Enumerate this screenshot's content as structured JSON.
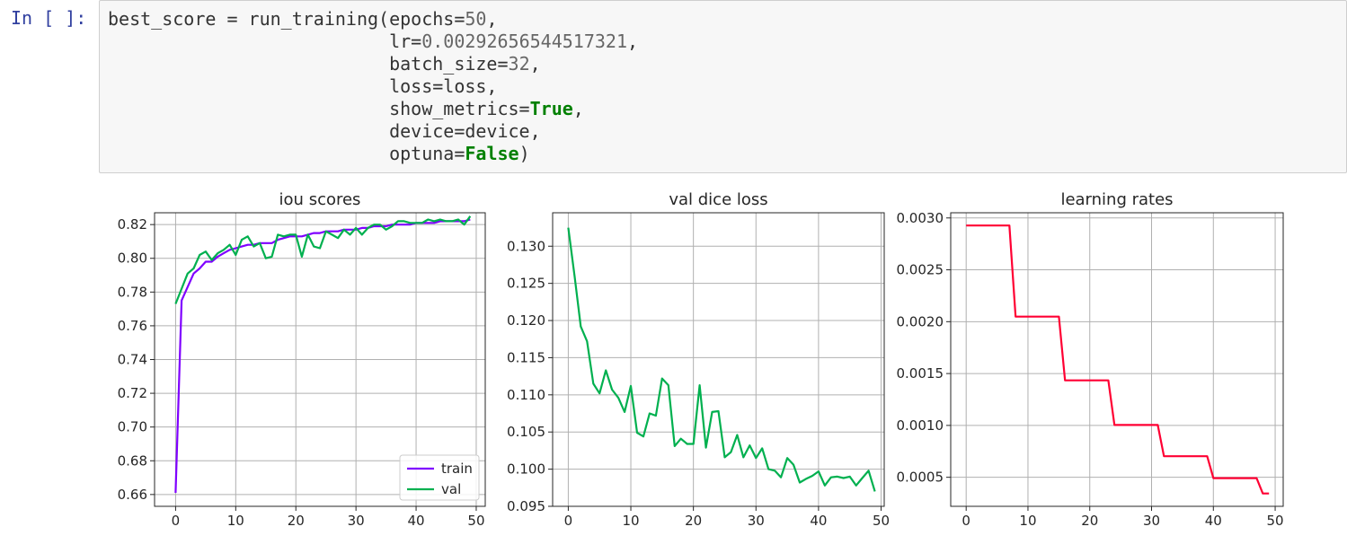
{
  "prompt": "In [ ]:",
  "code": {
    "l1a": "best_score = run_training(epochs=",
    "l1n": "50",
    "l1b": ",",
    "l2a": "                          lr=",
    "l2n": "0.00292656544517321",
    "l2b": ",",
    "l3a": "                          batch_size=",
    "l3n": "32",
    "l3b": ",",
    "l4": "                          loss=loss,",
    "l5a": "                          show_metrics=",
    "l5k": "True",
    "l5b": ",",
    "l6": "                          device=device,",
    "l7a": "                          optuna=",
    "l7k": "False",
    "l7b": ")"
  },
  "colors": {
    "train": "#7f00ff",
    "val": "#00b04f",
    "lr": "#ff0033",
    "grid": "#b0b0b0"
  },
  "chart_data": [
    {
      "type": "line",
      "title": "iou scores",
      "xlim": [
        -3.5,
        51.5
      ],
      "ylim": [
        0.653,
        0.827
      ],
      "xticks": [
        0,
        10,
        20,
        30,
        40,
        50
      ],
      "yticks": [
        0.66,
        0.68,
        0.7,
        0.72,
        0.74,
        0.76,
        0.78,
        0.8,
        0.82
      ],
      "yticklabels": [
        "0.66",
        "0.68",
        "0.70",
        "0.72",
        "0.74",
        "0.76",
        "0.78",
        "0.80",
        "0.82"
      ],
      "legend": "lower-right",
      "series": [
        {
          "name": "train",
          "color": "#7f00ff",
          "x": [
            0,
            1,
            2,
            3,
            4,
            5,
            6,
            7,
            8,
            9,
            10,
            11,
            12,
            13,
            14,
            15,
            16,
            17,
            18,
            19,
            20,
            21,
            22,
            23,
            24,
            25,
            26,
            27,
            28,
            29,
            30,
            31,
            32,
            33,
            34,
            35,
            36,
            37,
            38,
            39,
            40,
            41,
            42,
            43,
            44,
            45,
            46,
            47,
            48,
            49
          ],
          "values": [
            0.661,
            0.775,
            0.783,
            0.791,
            0.794,
            0.798,
            0.798,
            0.801,
            0.803,
            0.805,
            0.806,
            0.807,
            0.808,
            0.808,
            0.809,
            0.809,
            0.809,
            0.811,
            0.812,
            0.813,
            0.813,
            0.813,
            0.814,
            0.815,
            0.815,
            0.816,
            0.816,
            0.816,
            0.817,
            0.817,
            0.817,
            0.818,
            0.818,
            0.819,
            0.819,
            0.819,
            0.82,
            0.82,
            0.82,
            0.82,
            0.821,
            0.821,
            0.821,
            0.821,
            0.822,
            0.822,
            0.822,
            0.822,
            0.822,
            0.823
          ]
        },
        {
          "name": "val",
          "color": "#00b04f",
          "x": [
            0,
            1,
            2,
            3,
            4,
            5,
            6,
            7,
            8,
            9,
            10,
            11,
            12,
            13,
            14,
            15,
            16,
            17,
            18,
            19,
            20,
            21,
            22,
            23,
            24,
            25,
            26,
            27,
            28,
            29,
            30,
            31,
            32,
            33,
            34,
            35,
            36,
            37,
            38,
            39,
            40,
            41,
            42,
            43,
            44,
            45,
            46,
            47,
            48,
            49
          ],
          "values": [
            0.773,
            0.782,
            0.791,
            0.794,
            0.802,
            0.804,
            0.799,
            0.803,
            0.805,
            0.808,
            0.802,
            0.811,
            0.813,
            0.807,
            0.809,
            0.8,
            0.801,
            0.814,
            0.813,
            0.814,
            0.814,
            0.801,
            0.814,
            0.807,
            0.806,
            0.816,
            0.814,
            0.812,
            0.817,
            0.814,
            0.818,
            0.814,
            0.818,
            0.82,
            0.82,
            0.817,
            0.819,
            0.822,
            0.822,
            0.821,
            0.821,
            0.821,
            0.823,
            0.822,
            0.823,
            0.822,
            0.822,
            0.823,
            0.82,
            0.825
          ]
        }
      ]
    },
    {
      "type": "line",
      "title": "val dice loss",
      "xlim": [
        -2.5,
        50.5
      ],
      "ylim": [
        0.095,
        0.1345
      ],
      "xticks": [
        0,
        10,
        20,
        30,
        40,
        50
      ],
      "yticks": [
        0.095,
        0.1,
        0.105,
        0.11,
        0.115,
        0.12,
        0.125,
        0.13
      ],
      "yticklabels": [
        "0.095",
        "0.100",
        "0.105",
        "0.110",
        "0.115",
        "0.120",
        "0.125",
        "0.130"
      ],
      "series": [
        {
          "color": "#00b04f",
          "x": [
            0,
            1,
            2,
            3,
            4,
            5,
            6,
            7,
            8,
            9,
            10,
            11,
            12,
            13,
            14,
            15,
            16,
            17,
            18,
            19,
            20,
            21,
            22,
            23,
            24,
            25,
            26,
            27,
            28,
            29,
            30,
            31,
            32,
            33,
            34,
            35,
            36,
            37,
            38,
            39,
            40,
            41,
            42,
            43,
            44,
            45,
            46,
            47,
            48,
            49
          ],
          "values": [
            0.1325,
            0.126,
            0.1192,
            0.1172,
            0.1115,
            0.1102,
            0.1133,
            0.1107,
            0.1096,
            0.1077,
            0.1112,
            0.1049,
            0.1044,
            0.1075,
            0.1072,
            0.1122,
            0.1113,
            0.1031,
            0.1041,
            0.1034,
            0.1034,
            0.1113,
            0.1029,
            0.1077,
            0.1078,
            0.1016,
            0.1023,
            0.1046,
            0.1016,
            0.1032,
            0.1015,
            0.1028,
            0.1,
            0.0998,
            0.0989,
            0.1015,
            0.1006,
            0.0982,
            0.0987,
            0.0991,
            0.0997,
            0.0978,
            0.0989,
            0.099,
            0.0988,
            0.099,
            0.0978,
            0.0988,
            0.0998,
            0.097
          ]
        }
      ]
    },
    {
      "type": "line",
      "title": "learning rates",
      "xlim": [
        -2.5,
        51.3
      ],
      "ylim": [
        0.00022,
        0.00305
      ],
      "xticks": [
        0,
        10,
        20,
        30,
        40,
        50
      ],
      "yticks": [
        0.0005,
        0.001,
        0.0015,
        0.002,
        0.0025,
        0.003
      ],
      "yticklabels": [
        "0.0005",
        "0.0010",
        "0.0015",
        "0.0020",
        "0.0025",
        "0.0030"
      ],
      "series": [
        {
          "color": "#ff0033",
          "x": [
            0,
            1,
            2,
            3,
            4,
            5,
            6,
            7,
            8,
            9,
            10,
            11,
            12,
            13,
            14,
            15,
            16,
            17,
            18,
            19,
            20,
            21,
            22,
            23,
            24,
            25,
            26,
            27,
            28,
            29,
            30,
            31,
            32,
            33,
            34,
            35,
            36,
            37,
            38,
            39,
            40,
            41,
            42,
            43,
            44,
            45,
            46,
            47,
            48,
            49
          ],
          "values": [
            0.002927,
            0.002927,
            0.002927,
            0.002927,
            0.002927,
            0.002927,
            0.002927,
            0.002927,
            0.002049,
            0.002049,
            0.002049,
            0.002049,
            0.002049,
            0.002049,
            0.002049,
            0.002049,
            0.001434,
            0.001434,
            0.001434,
            0.001434,
            0.001434,
            0.001434,
            0.001434,
            0.001434,
            0.001004,
            0.001004,
            0.001004,
            0.001004,
            0.001004,
            0.001004,
            0.001004,
            0.001004,
            0.000703,
            0.000703,
            0.000703,
            0.000703,
            0.000703,
            0.000703,
            0.000703,
            0.000703,
            0.000492,
            0.000492,
            0.000492,
            0.000492,
            0.000492,
            0.000492,
            0.000492,
            0.000492,
            0.000344,
            0.000344
          ]
        }
      ]
    }
  ]
}
